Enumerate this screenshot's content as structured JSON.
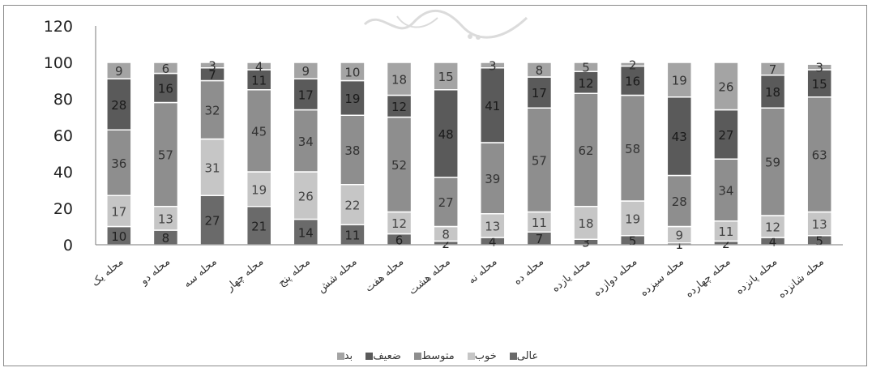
{
  "chart_data": {
    "type": "bar",
    "stacked": true,
    "categories": [
      "محله یک",
      "محله دو",
      "محله سه",
      "محله چهار",
      "محله پنج",
      "محله شش",
      "محله هفت",
      "محله هشت",
      "محله نه",
      "محله ده",
      "محله یازده",
      "محله دوازده",
      "محله سیزده",
      "محله چهارده",
      "محله پانزده",
      "محله شانزده"
    ],
    "series": [
      {
        "name": "عالی",
        "color": "#6a6a6a",
        "label_color": "#222222",
        "values": [
          10,
          8,
          27,
          21,
          14,
          11,
          6,
          2,
          4,
          7,
          3,
          5,
          1,
          2,
          4,
          5
        ]
      },
      {
        "name": "خوب",
        "color": "#c6c6c6",
        "label_color": "#444444",
        "values": [
          17,
          13,
          31,
          19,
          26,
          22,
          12,
          8,
          13,
          11,
          18,
          19,
          9,
          11,
          12,
          13
        ]
      },
      {
        "name": "متوسط",
        "color": "#8e8e8e",
        "label_color": "#333333",
        "values": [
          36,
          57,
          32,
          45,
          34,
          38,
          52,
          27,
          39,
          57,
          62,
          58,
          28,
          34,
          59,
          63
        ]
      },
      {
        "name": "ضعیف",
        "color": "#5a5a5a",
        "label_color": "#1a1a1a",
        "values": [
          28,
          16,
          7,
          11,
          17,
          19,
          12,
          48,
          41,
          17,
          12,
          16,
          43,
          27,
          18,
          15
        ]
      },
      {
        "name": "بد",
        "color": "#a4a4a4",
        "label_color": "#333333",
        "values": [
          9,
          6,
          3,
          4,
          9,
          10,
          18,
          15,
          3,
          8,
          5,
          2,
          19,
          26,
          7,
          3
        ]
      }
    ],
    "ylim": [
      0,
      120
    ],
    "yticks": [
      0,
      20,
      40,
      60,
      80,
      100,
      120
    ],
    "legend_position": "bottom",
    "grid": false
  }
}
